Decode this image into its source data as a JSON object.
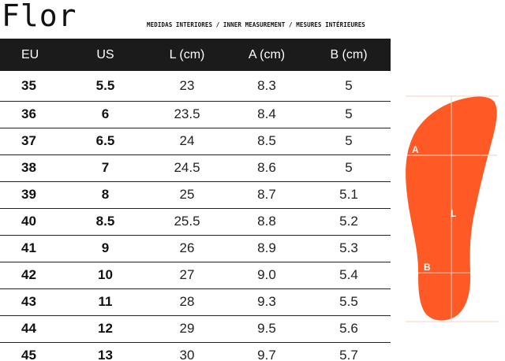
{
  "header": {
    "brand": "Flor",
    "subtitle": "MEDIDAS INTERIORES / INNER MEASUREMENT / MESURES INTÉRIEURES"
  },
  "table": {
    "columns": [
      "EU",
      "US",
      "L (cm)",
      "A (cm)",
      "B (cm)"
    ],
    "rows": [
      [
        "35",
        "5.5",
        "23",
        "8.3",
        "5"
      ],
      [
        "36",
        "6",
        "23.5",
        "8.4",
        "5"
      ],
      [
        "37",
        "6.5",
        "24",
        "8.5",
        "5"
      ],
      [
        "38",
        "7",
        "24.5",
        "8.6",
        "5"
      ],
      [
        "39",
        "8",
        "25",
        "8.7",
        "5.1"
      ],
      [
        "40",
        "8.5",
        "25.5",
        "8.8",
        "5.2"
      ],
      [
        "41",
        "9",
        "26",
        "8.9",
        "5.3"
      ],
      [
        "42",
        "10",
        "27",
        "9.0",
        "5.4"
      ],
      [
        "43",
        "11",
        "28",
        "9.3",
        "5.5"
      ],
      [
        "44",
        "12",
        "29",
        "9.5",
        "5.6"
      ],
      [
        "45",
        "13",
        "30",
        "9.7",
        "5.7"
      ]
    ]
  },
  "diagram": {
    "label_a": "A",
    "label_l": "L",
    "label_b": "B",
    "fill_color": "#ff5a26",
    "line_color": "#f3d2c4"
  }
}
